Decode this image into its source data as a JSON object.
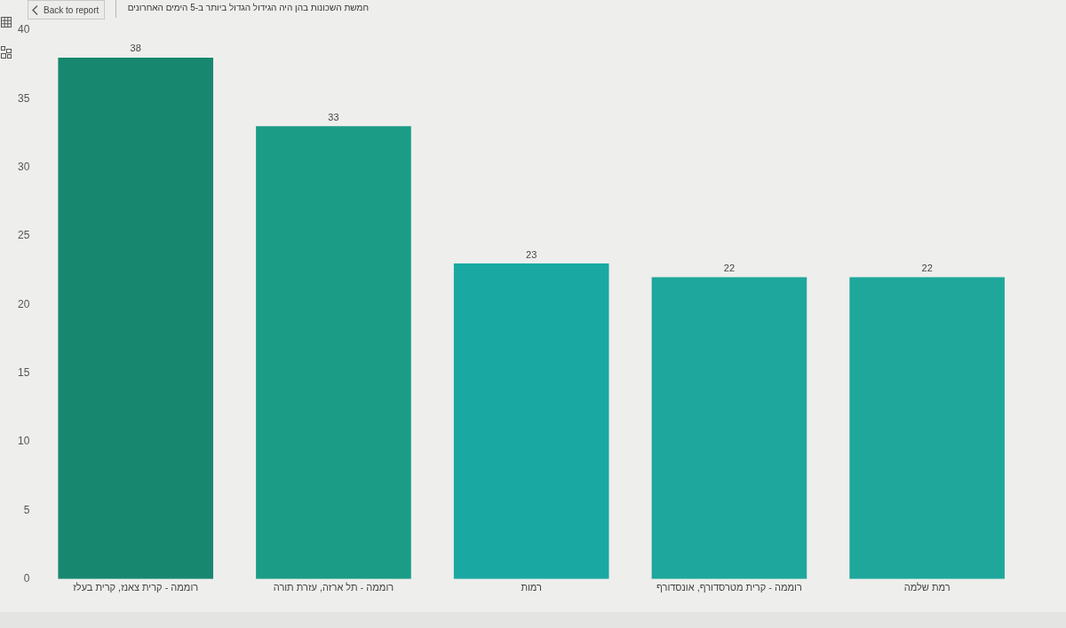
{
  "chart_data": {
    "type": "bar",
    "title": "חמשת השכונות בהן היה הגידול הגדול ביותר ב-5 הימים האחרונים",
    "annotations": [
      "Back to report"
    ],
    "categories": [
      "רוממה - קרית צאנז, קרית בעלז",
      "רוממה - תל ארזה, עזרת תורה",
      "רמות",
      "רוממה - קרית מטרסדורף, אונסדורף",
      "רמת שלמה"
    ],
    "values": [
      38,
      33,
      23,
      22,
      22
    ],
    "colors": [
      "#17886f",
      "#1a9c87",
      "#1aa9a2",
      "#1ea79c",
      "#1fa79c"
    ],
    "ylim": [
      0,
      40
    ],
    "yticks": [
      0,
      5,
      10,
      15,
      20,
      25,
      30,
      35,
      40
    ],
    "grid": false,
    "legend": false,
    "data_labels": true
  }
}
